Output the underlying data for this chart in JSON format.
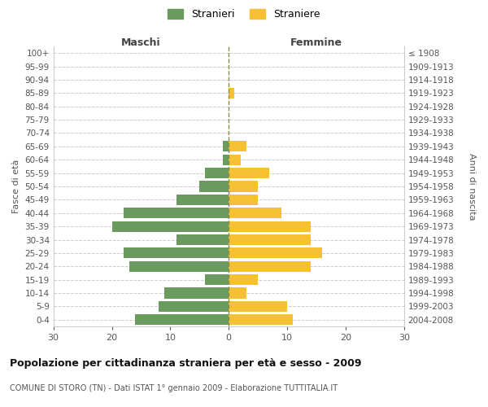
{
  "age_groups": [
    "100+",
    "95-99",
    "90-94",
    "85-89",
    "80-84",
    "75-79",
    "70-74",
    "65-69",
    "60-64",
    "55-59",
    "50-54",
    "45-49",
    "40-44",
    "35-39",
    "30-34",
    "25-29",
    "20-24",
    "15-19",
    "10-14",
    "5-9",
    "0-4"
  ],
  "birth_years": [
    "≤ 1908",
    "1909-1913",
    "1914-1918",
    "1919-1923",
    "1924-1928",
    "1929-1933",
    "1934-1938",
    "1939-1943",
    "1944-1948",
    "1949-1953",
    "1954-1958",
    "1959-1963",
    "1964-1968",
    "1969-1973",
    "1974-1978",
    "1979-1983",
    "1984-1988",
    "1989-1993",
    "1994-1998",
    "1999-2003",
    "2004-2008"
  ],
  "maschi": [
    0,
    0,
    0,
    0,
    0,
    0,
    0,
    1,
    1,
    4,
    5,
    9,
    18,
    20,
    9,
    18,
    17,
    4,
    11,
    12,
    16
  ],
  "femmine": [
    0,
    0,
    0,
    1,
    0,
    0,
    0,
    3,
    2,
    7,
    5,
    5,
    9,
    14,
    14,
    16,
    14,
    5,
    3,
    10,
    11
  ],
  "maschi_color": "#6b9a5e",
  "femmine_color": "#f5c034",
  "center_line_color": "#8a8a4a",
  "grid_color": "#cccccc",
  "background_color": "#ffffff",
  "title": "Popolazione per cittadinanza straniera per età e sesso - 2009",
  "subtitle": "COMUNE DI STORO (TN) - Dati ISTAT 1° gennaio 2009 - Elaborazione TUTTITALIA.IT",
  "ylabel_left": "Fasce di età",
  "ylabel_right": "Anni di nascita",
  "xlabel_maschi": "Maschi",
  "xlabel_femmine": "Femmine",
  "legend_maschi": "Stranieri",
  "legend_femmine": "Straniere",
  "xlim": 30,
  "bar_height": 0.8
}
